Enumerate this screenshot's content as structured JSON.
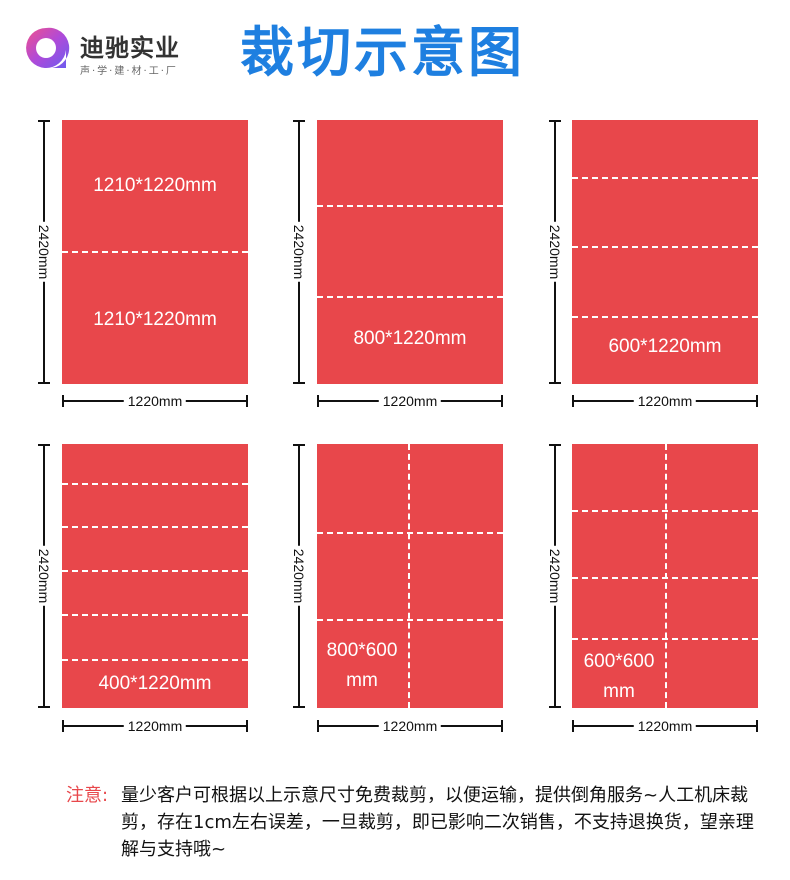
{
  "header": {
    "brand_name": "迪驰实业",
    "brand_sub": "声·学·建·材·工·厂",
    "title": "裁切示意图"
  },
  "diagrams": [
    {
      "height_label": "2420mm",
      "width_label": "1220mm",
      "labels": [
        "1210*1220mm",
        "1210*1220mm"
      ]
    },
    {
      "height_label": "2420mm",
      "width_label": "1220mm",
      "labels": [
        "800*1220mm"
      ]
    },
    {
      "height_label": "2420mm",
      "width_label": "1220mm",
      "labels": [
        "600*1220mm"
      ]
    },
    {
      "height_label": "2420mm",
      "width_label": "1220mm",
      "labels": [
        "400*1220mm"
      ]
    },
    {
      "height_label": "2420mm",
      "width_label": "1220mm",
      "labels": [
        "800*600 mm"
      ]
    },
    {
      "height_label": "2420mm",
      "width_label": "1220mm",
      "labels": [
        "600*600 mm"
      ]
    }
  ],
  "note": {
    "label": "注意:",
    "text": "量少客户可根据以上示意尺寸免费裁剪，以便运输，提供倒角服务~人工机床裁剪，存在1cm左右误差，一旦裁剪，即已影响二次销售，不支持退换货，望亲理解与支持哦~"
  },
  "colors": {
    "sheet": "#e8474b",
    "title": "#1e7fe0",
    "note_label": "#e8474b"
  }
}
